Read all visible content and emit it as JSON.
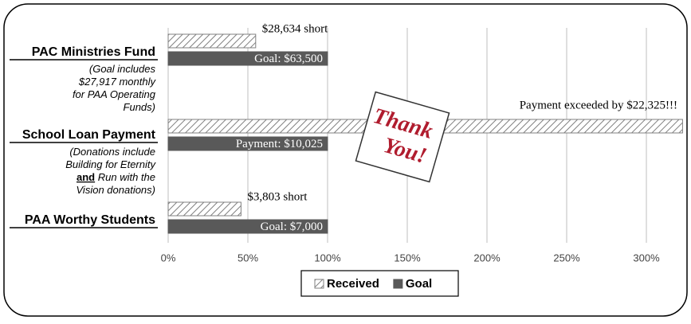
{
  "chart_data": {
    "type": "bar",
    "orientation": "horizontal",
    "categories": [
      "PAC Ministries Fund",
      "School Loan Payment",
      "PAA Worthy Students"
    ],
    "category_notes": [
      [
        [
          "(Goal includes"
        ],
        [
          "$27,917 monthly"
        ],
        [
          "for PAA Operating"
        ],
        [
          "Funds)"
        ]
      ],
      [
        [
          "(Donations include"
        ],
        [
          "Building for Eternity"
        ],
        [
          "and",
          " Run with the"
        ],
        [
          "Vision donations)"
        ]
      ],
      []
    ],
    "series": [
      {
        "name": "Received",
        "color": "#808080",
        "hatch": true,
        "values": [
          54.9,
          322.7,
          45.7
        ],
        "bar_labels": [
          "$28,634 short",
          "Payment exceeded by $22,325!!!",
          "$3,803 short"
        ]
      },
      {
        "name": "Goal",
        "color": "#595959",
        "hatch": false,
        "values": [
          100,
          100,
          100
        ],
        "bar_labels": [
          "Goal:  $63,500",
          "Payment:  $10,025",
          "Goal:  $7,000"
        ]
      }
    ],
    "xlim": [
      0,
      323
    ],
    "xticks": [
      {
        "value": 0,
        "label": "0%"
      },
      {
        "value": 50,
        "label": "50%"
      },
      {
        "value": 100,
        "label": "100%"
      },
      {
        "value": 150,
        "label": "150%"
      },
      {
        "value": 200,
        "label": "200%"
      },
      {
        "value": 250,
        "label": "250%"
      },
      {
        "value": 300,
        "label": "300%"
      }
    ],
    "grid": true,
    "legend": "bottom",
    "sticker": [
      "Thank",
      "You!"
    ]
  }
}
